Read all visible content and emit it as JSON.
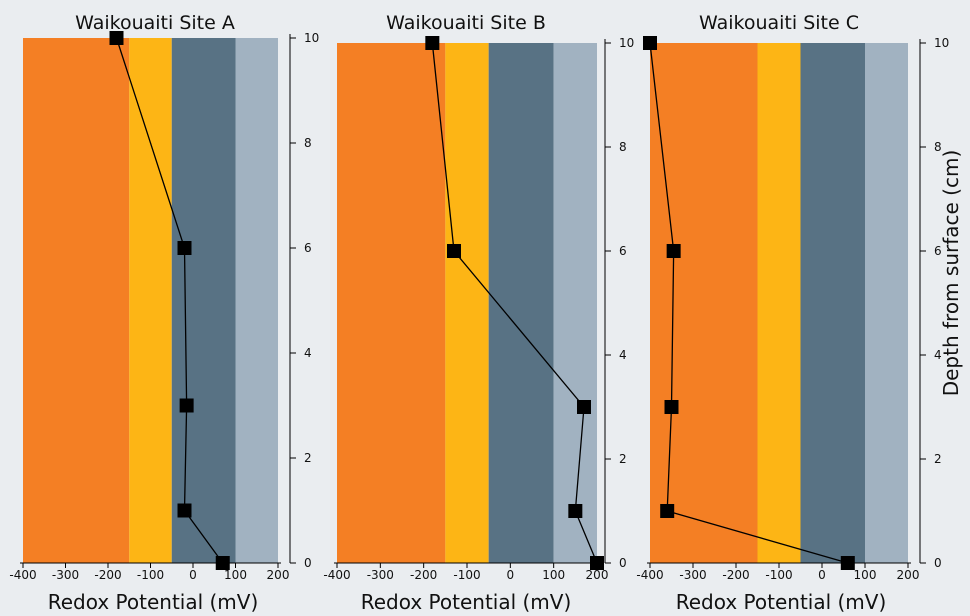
{
  "colors": {
    "background": "#eaedf0",
    "zone_1": "#f47f24",
    "zone_2": "#fdb515",
    "zone_3": "#587284",
    "zone_4": "#a1b2c1",
    "marker": "#000000",
    "line": "#000000"
  },
  "chart_data": [
    {
      "type": "line",
      "title": "Waikouaiti Site A",
      "xlabel": "Redox Potential (mV)",
      "ylabel": "",
      "xlim": [
        -400,
        200
      ],
      "ylim": [
        0,
        10
      ],
      "x_ticks": [
        -400,
        -300,
        -200,
        -100,
        0,
        100,
        200
      ],
      "y_ticks": [
        0,
        2,
        4,
        6,
        8,
        10
      ],
      "grid": false,
      "zones": [
        {
          "from": -400,
          "to": -150,
          "color": "#f47f24"
        },
        {
          "from": -150,
          "to": -50,
          "color": "#fdb515"
        },
        {
          "from": -50,
          "to": 100,
          "color": "#587284"
        },
        {
          "from": 100,
          "to": 200,
          "color": "#a1b2c1"
        }
      ],
      "series": [
        {
          "points": [
            {
              "depth": 10,
              "redox": -180
            },
            {
              "depth": 6,
              "redox": -20
            },
            {
              "depth": 3,
              "redox": -15
            },
            {
              "depth": 1,
              "redox": -20
            },
            {
              "depth": 0,
              "redox": 70
            }
          ]
        }
      ]
    },
    {
      "type": "line",
      "title": "Waikouaiti Site B",
      "xlabel": "Redox Potential (mV)",
      "ylabel": "",
      "xlim": [
        -400,
        200
      ],
      "ylim": [
        0,
        10
      ],
      "x_ticks": [
        -400,
        -300,
        -200,
        -100,
        0,
        100,
        200
      ],
      "y_ticks": [
        0,
        2,
        4,
        6,
        8,
        10
      ],
      "grid": false,
      "zones": [
        {
          "from": -400,
          "to": -150,
          "color": "#f47f24"
        },
        {
          "from": -150,
          "to": -50,
          "color": "#fdb515"
        },
        {
          "from": -50,
          "to": 100,
          "color": "#587284"
        },
        {
          "from": 100,
          "to": 200,
          "color": "#a1b2c1"
        }
      ],
      "series": [
        {
          "points": [
            {
              "depth": 10,
              "redox": -180
            },
            {
              "depth": 6,
              "redox": -130
            },
            {
              "depth": 3,
              "redox": 170
            },
            {
              "depth": 1,
              "redox": 150
            },
            {
              "depth": 0,
              "redox": 200
            }
          ]
        }
      ]
    },
    {
      "type": "line",
      "title": "Waikouaiti Site C",
      "xlabel": "Redox Potential (mV)",
      "ylabel": "Depth from surface (cm)",
      "xlim": [
        -400,
        200
      ],
      "ylim": [
        0,
        10
      ],
      "x_ticks": [
        -400,
        -300,
        -200,
        -100,
        0,
        100,
        200
      ],
      "y_ticks": [
        0,
        2,
        4,
        6,
        8,
        10
      ],
      "grid": false,
      "zones": [
        {
          "from": -400,
          "to": -150,
          "color": "#f47f24"
        },
        {
          "from": -150,
          "to": -50,
          "color": "#fdb515"
        },
        {
          "from": -50,
          "to": 100,
          "color": "#587284"
        },
        {
          "from": 100,
          "to": 200,
          "color": "#a1b2c1"
        }
      ],
      "series": [
        {
          "points": [
            {
              "depth": 10,
              "redox": -400
            },
            {
              "depth": 6,
              "redox": -345
            },
            {
              "depth": 3,
              "redox": -350
            },
            {
              "depth": 1,
              "redox": -360
            },
            {
              "depth": 0,
              "redox": 60
            }
          ]
        }
      ]
    }
  ]
}
